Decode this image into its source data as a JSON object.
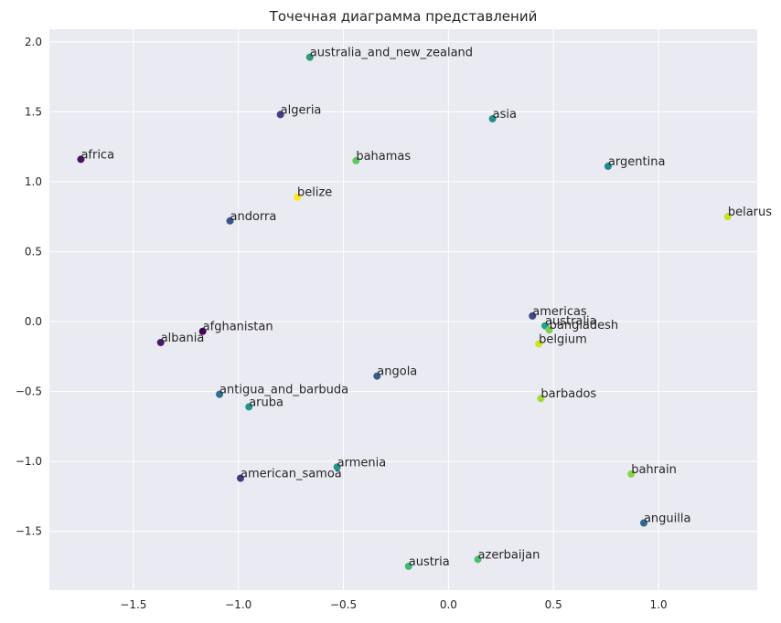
{
  "chart_data": {
    "type": "scatter",
    "title": "Точечная диаграмма представлений",
    "xlabel": "",
    "ylabel": "",
    "xlim": [
      -1.9,
      1.47
    ],
    "ylim": [
      -1.92,
      2.09
    ],
    "xticks": [
      -1.5,
      -1.0,
      -0.5,
      0.0,
      0.5,
      1.0
    ],
    "xtick_labels": [
      "−1.5",
      "−1.0",
      "−0.5",
      "0.0",
      "0.5",
      "1.0"
    ],
    "yticks": [
      -1.5,
      -1.0,
      -0.5,
      0.0,
      0.5,
      1.0,
      1.5,
      2.0
    ],
    "ytick_labels": [
      "−1.5",
      "−1.0",
      "−0.5",
      "0.0",
      "0.5",
      "1.0",
      "1.5",
      "2.0"
    ],
    "grid": true,
    "background": "#eaeaf2",
    "colormap": "viridis",
    "points": [
      {
        "label": "australia_and_new_zealand",
        "x": -0.66,
        "y": 1.89,
        "color": "#2a9d7c"
      },
      {
        "label": "algeria",
        "x": -0.8,
        "y": 1.48,
        "color": "#433e85"
      },
      {
        "label": "asia",
        "x": 0.21,
        "y": 1.45,
        "color": "#21918c"
      },
      {
        "label": "africa",
        "x": -1.75,
        "y": 1.16,
        "color": "#471365"
      },
      {
        "label": "bahamas",
        "x": -0.44,
        "y": 1.15,
        "color": "#5ec962"
      },
      {
        "label": "argentina",
        "x": 0.76,
        "y": 1.11,
        "color": "#23898e"
      },
      {
        "label": "belize",
        "x": -0.72,
        "y": 0.89,
        "color": "#fde725"
      },
      {
        "label": "belarus",
        "x": 1.33,
        "y": 0.75,
        "color": "#c8e020"
      },
      {
        "label": "andorra",
        "x": -1.04,
        "y": 0.72,
        "color": "#3b528b"
      },
      {
        "label": "americas",
        "x": 0.4,
        "y": 0.04,
        "color": "#3e4989"
      },
      {
        "label": "australia",
        "x": 0.46,
        "y": -0.03,
        "color": "#20a486"
      },
      {
        "label": "bangladesh",
        "x": 0.48,
        "y": -0.06,
        "color": "#7ad151"
      },
      {
        "label": "afghanistan",
        "x": -1.17,
        "y": -0.07,
        "color": "#440154"
      },
      {
        "label": "albania",
        "x": -1.37,
        "y": -0.15,
        "color": "#481a6c"
      },
      {
        "label": "belgium",
        "x": 0.43,
        "y": -0.16,
        "color": "#d2e21b"
      },
      {
        "label": "angola",
        "x": -0.34,
        "y": -0.39,
        "color": "#355f8d"
      },
      {
        "label": "antigua_and_barbuda",
        "x": -1.09,
        "y": -0.52,
        "color": "#2c728e"
      },
      {
        "label": "barbados",
        "x": 0.44,
        "y": -0.55,
        "color": "#a5db36"
      },
      {
        "label": "aruba",
        "x": -0.95,
        "y": -0.61,
        "color": "#1f988b"
      },
      {
        "label": "armenia",
        "x": -0.53,
        "y": -1.04,
        "color": "#1f958b"
      },
      {
        "label": "bahrain",
        "x": 0.87,
        "y": -1.09,
        "color": "#86d549"
      },
      {
        "label": "american_samoa",
        "x": -0.99,
        "y": -1.12,
        "color": "#443983"
      },
      {
        "label": "anguilla",
        "x": 0.93,
        "y": -1.44,
        "color": "#31688e"
      },
      {
        "label": "azerbaijan",
        "x": 0.14,
        "y": -1.7,
        "color": "#4ac16d"
      },
      {
        "label": "austria",
        "x": -0.19,
        "y": -1.75,
        "color": "#3bbb75"
      }
    ]
  }
}
